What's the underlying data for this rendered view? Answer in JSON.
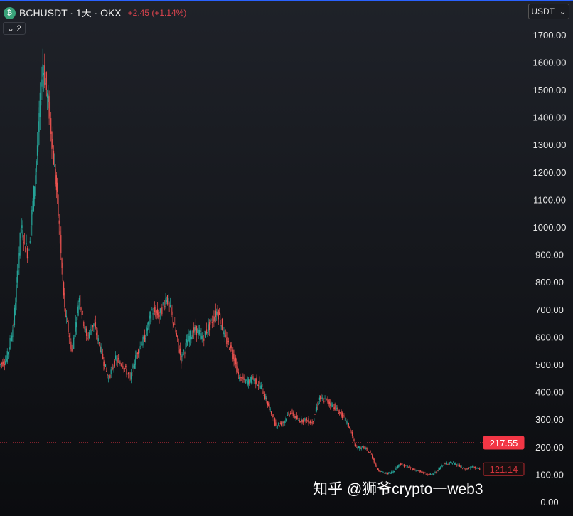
{
  "header": {
    "symbol": "BCHUSDT · 1天 · OKX",
    "change": "+2.45 (+1.14%)",
    "indicator_count": "2",
    "currency": "USDT",
    "logo_icon": "bitcoin-cash-icon"
  },
  "watermark": "知乎 @狮爷crypto一web3",
  "chart_data": {
    "type": "candlestick",
    "title": "BCHUSDT · 1天 · OKX",
    "ylim": [
      0,
      1700
    ],
    "y_ticks": [
      "1700.00",
      "1600.00",
      "1500.00",
      "1400.00",
      "1300.00",
      "1200.00",
      "1100.00",
      "1000.00",
      "900.00",
      "800.00",
      "700.00",
      "600.00",
      "500.00",
      "400.00",
      "300.00",
      "200.00",
      "100.00",
      "0.00"
    ],
    "y_tick_values": [
      1700,
      1600,
      1500,
      1400,
      1300,
      1200,
      1100,
      1000,
      900,
      800,
      700,
      600,
      500,
      400,
      300,
      200,
      100,
      0
    ],
    "close": [
      500,
      520,
      650,
      1000,
      900,
      1200,
      1600,
      1400,
      1100,
      700,
      550,
      750,
      600,
      650,
      550,
      450,
      520,
      500,
      450,
      550,
      600,
      700,
      680,
      750,
      650,
      520,
      600,
      630,
      600,
      650,
      700,
      600,
      550,
      450,
      440,
      450,
      420,
      350,
      280,
      290,
      330,
      300,
      300,
      290,
      380,
      370,
      350,
      320,
      280,
      200,
      200,
      180,
      120,
      105,
      110,
      140,
      130,
      120,
      110,
      100,
      110,
      140,
      145,
      135,
      120,
      130,
      121
    ],
    "price_lines": [
      {
        "label": "217.55",
        "value": 217.55,
        "color": "#f23645"
      },
      {
        "label": "121.14",
        "value": 121.14,
        "color": "#b2282e"
      }
    ],
    "colors": {
      "up": "#26a69a",
      "down": "#ef5350"
    }
  }
}
